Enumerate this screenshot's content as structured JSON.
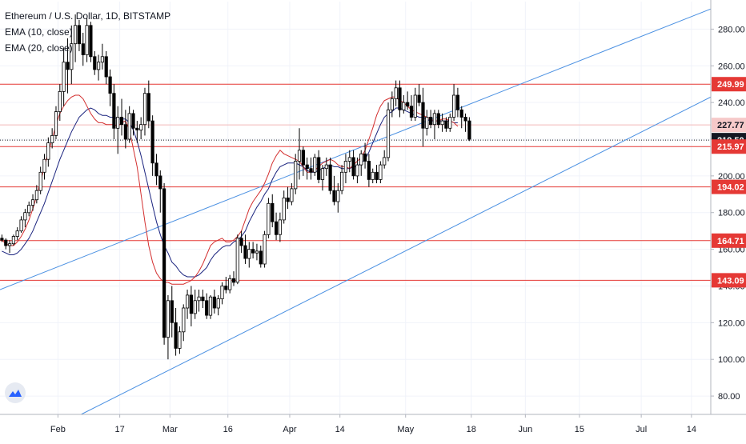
{
  "legend": {
    "symbol": "Ethereum / U.S. Dollar, 1D, BITSTAMP",
    "ema10": "EMA (10, close)",
    "ema20": "EMA (20, close)"
  },
  "colors": {
    "bull": "#ffffff",
    "bear": "#000000",
    "wick": "#000000",
    "ema10": "#d32f2f",
    "ema20": "#1a237e",
    "channel": "#4a90e2",
    "level": "#e53935",
    "last_price_bg": "#131722",
    "prev_close_bg": "#f6c9c9"
  },
  "chart_data": {
    "type": "candlestick",
    "y_axis": {
      "range": [
        70,
        295
      ],
      "ticks": [
        "80.00",
        "100.00",
        "120.00",
        "140.00",
        "160.00",
        "180.00",
        "200.00",
        "220.00",
        "240.00",
        "260.00",
        "280.00"
      ]
    },
    "x_axis": {
      "start_date": "2020-01-17",
      "end_date": "2020-07-19",
      "ticks": [
        {
          "label": "Feb",
          "date": "2020-02-01"
        },
        {
          "label": "17",
          "date": "2020-02-17"
        },
        {
          "label": "Mar",
          "date": "2020-03-01"
        },
        {
          "label": "16",
          "date": "2020-03-16"
        },
        {
          "label": "Apr",
          "date": "2020-04-01"
        },
        {
          "label": "14",
          "date": "2020-04-14"
        },
        {
          "label": "May",
          "date": "2020-05-01"
        },
        {
          "label": "18",
          "date": "2020-05-18"
        },
        {
          "label": "Jun",
          "date": "2020-06-01"
        },
        {
          "label": "15",
          "date": "2020-06-15"
        },
        {
          "label": "Jul",
          "date": "2020-07-01"
        },
        {
          "label": "14",
          "date": "2020-07-14"
        }
      ]
    },
    "price_labels": [
      {
        "text": "249.99",
        "value": 249.99,
        "style": "level"
      },
      {
        "text": "227.77",
        "value": 227.77,
        "style": "prev_close"
      },
      {
        "text": "219.50",
        "value": 219.5,
        "style": "last"
      },
      {
        "text": "215.97",
        "value": 215.97,
        "style": "level"
      },
      {
        "text": "194.02",
        "value": 194.02,
        "style": "level"
      },
      {
        "text": "164.71",
        "value": 164.71,
        "style": "level"
      },
      {
        "text": "143.09",
        "value": 143.09,
        "style": "level"
      }
    ],
    "horizontal_levels": [
      249.99,
      215.97,
      194.02,
      164.71,
      143.09
    ],
    "last_price": 219.5,
    "prev_close": 227.77,
    "channel_lines": [
      {
        "name": "upper",
        "from": {
          "date": "2020-01-17",
          "price": 138
        },
        "to": {
          "date": "2020-07-19",
          "price": 291
        }
      },
      {
        "name": "lower",
        "from": {
          "date": "2020-02-07",
          "price": 70
        },
        "to": {
          "date": "2020-07-19",
          "price": 243
        }
      }
    ],
    "series": [
      {
        "name": "EMA (10, close)",
        "kind": "line",
        "values": [
          165,
          163,
          162,
          162,
          164,
          167,
          171,
          176,
          182,
          189,
          197,
          205,
          213,
          220,
          228,
          234,
          238,
          241,
          243,
          244,
          244,
          242,
          238,
          234,
          231,
          229,
          229,
          228,
          228,
          228,
          227,
          229,
          230,
          225,
          215,
          205,
          190,
          175,
          162,
          153,
          147,
          144,
          142,
          142,
          141,
          141,
          141,
          141,
          142,
          143,
          145,
          148,
          152,
          157,
          162,
          164,
          165,
          166,
          164,
          164,
          165,
          167,
          170,
          176,
          182,
          186,
          189,
          192,
          196,
          201,
          207,
          211,
          214,
          212,
          211,
          210,
          209,
          208,
          205,
          202,
          202,
          203,
          205,
          207,
          208,
          209,
          208,
          206,
          205,
          205,
          204,
          206,
          208,
          210,
          214,
          220,
          226,
          233,
          238,
          241,
          242,
          243,
          243,
          241,
          240,
          238,
          236,
          235,
          234,
          233,
          232,
          231,
          230,
          230,
          231,
          231,
          230,
          229,
          227
        ]
      },
      {
        "name": "EMA (20, close)",
        "kind": "line",
        "values": [
          159,
          158,
          157,
          157,
          158,
          160,
          163,
          166,
          170,
          175,
          180,
          185,
          191,
          197,
          203,
          209,
          214,
          219,
          224,
          228,
          232,
          234,
          236,
          237,
          236,
          234,
          233,
          233,
          232,
          232,
          231,
          231,
          231,
          229,
          225,
          219,
          211,
          202,
          193,
          184,
          175,
          168,
          162,
          158,
          153,
          151,
          148,
          146,
          145,
          145,
          145,
          146,
          148,
          150,
          154,
          157,
          159,
          161,
          162,
          162,
          164,
          165,
          167,
          170,
          175,
          179,
          183,
          186,
          190,
          193,
          198,
          202,
          205,
          206,
          207,
          207,
          207,
          206,
          205,
          203,
          202,
          202,
          203,
          204,
          205,
          206,
          205,
          205,
          204,
          204,
          204,
          205,
          205,
          207,
          209,
          213,
          218,
          223,
          228,
          232,
          234,
          235,
          237,
          237,
          236,
          235,
          234,
          233,
          232,
          232,
          231,
          230,
          230,
          230,
          230,
          230,
          230,
          229,
          229
        ]
      },
      {
        "name": "price",
        "kind": "candles",
        "ohlc": [
          [
            166,
            168,
            164,
            165
          ],
          [
            165,
            166,
            160,
            162
          ],
          [
            162,
            165,
            158,
            163
          ],
          [
            163,
            168,
            162,
            167
          ],
          [
            167,
            172,
            165,
            170
          ],
          [
            170,
            178,
            169,
            176
          ],
          [
            176,
            182,
            172,
            180
          ],
          [
            180,
            186,
            178,
            184
          ],
          [
            184,
            190,
            181,
            187
          ],
          [
            187,
            195,
            185,
            192
          ],
          [
            192,
            205,
            190,
            202
          ],
          [
            202,
            212,
            198,
            209
          ],
          [
            209,
            221,
            205,
            218
          ],
          [
            218,
            226,
            215,
            222
          ],
          [
            222,
            238,
            220,
            235
          ],
          [
            235,
            250,
            230,
            246
          ],
          [
            246,
            270,
            238,
            262
          ],
          [
            262,
            275,
            245,
            258
          ],
          [
            258,
            282,
            250,
            272
          ],
          [
            272,
            288,
            262,
            282
          ],
          [
            282,
            285,
            268,
            272
          ],
          [
            272,
            278,
            260,
            266
          ],
          [
            266,
            286,
            262,
            282
          ],
          [
            282,
            284,
            262,
            265
          ],
          [
            265,
            268,
            255,
            258
          ],
          [
            258,
            266,
            252,
            262
          ],
          [
            262,
            272,
            258,
            265
          ],
          [
            265,
            268,
            250,
            254
          ],
          [
            254,
            258,
            238,
            245
          ],
          [
            245,
            250,
            220,
            226
          ],
          [
            226,
            238,
            212,
            232
          ],
          [
            232,
            242,
            222,
            228
          ],
          [
            228,
            236,
            215,
            220
          ],
          [
            220,
            238,
            218,
            234
          ],
          [
            234,
            236,
            222,
            226
          ],
          [
            226,
            230,
            218,
            225
          ],
          [
            225,
            232,
            220,
            228
          ],
          [
            228,
            248,
            222,
            245
          ],
          [
            245,
            252,
            226,
            230
          ],
          [
            230,
            233,
            200,
            207
          ],
          [
            207,
            212,
            195,
            200
          ],
          [
            200,
            203,
            180,
            193
          ],
          [
            193,
            196,
            108,
            112
          ],
          [
            112,
            135,
            100,
            132
          ],
          [
            132,
            140,
            112,
            120
          ],
          [
            120,
            128,
            102,
            106
          ],
          [
            106,
            118,
            103,
            115
          ],
          [
            115,
            130,
            110,
            128
          ],
          [
            128,
            138,
            122,
            135
          ],
          [
            135,
            140,
            118,
            125
          ],
          [
            125,
            138,
            122,
            132
          ],
          [
            132,
            138,
            126,
            134
          ],
          [
            134,
            138,
            128,
            132
          ],
          [
            132,
            136,
            122,
            124
          ],
          [
            124,
            135,
            122,
            134
          ],
          [
            134,
            138,
            125,
            128
          ],
          [
            128,
            135,
            124,
            133
          ],
          [
            133,
            142,
            130,
            140
          ],
          [
            140,
            145,
            136,
            138
          ],
          [
            138,
            146,
            136,
            144
          ],
          [
            144,
            148,
            140,
            142
          ],
          [
            142,
            168,
            141,
            166
          ],
          [
            166,
            170,
            158,
            162
          ],
          [
            162,
            168,
            152,
            155
          ],
          [
            155,
            164,
            150,
            160
          ],
          [
            160,
            164,
            155,
            158
          ],
          [
            158,
            163,
            154,
            159
          ],
          [
            159,
            162,
            150,
            152
          ],
          [
            152,
            170,
            150,
            168
          ],
          [
            168,
            188,
            166,
            185
          ],
          [
            185,
            190,
            172,
            175
          ],
          [
            175,
            180,
            165,
            168
          ],
          [
            168,
            180,
            164,
            176
          ],
          [
            176,
            192,
            174,
            188
          ],
          [
            188,
            194,
            182,
            186
          ],
          [
            186,
            196,
            184,
            193
          ],
          [
            193,
            212,
            190,
            208
          ],
          [
            208,
            226,
            198,
            214
          ],
          [
            214,
            216,
            200,
            206
          ],
          [
            206,
            210,
            198,
            204
          ],
          [
            204,
            210,
            198,
            202
          ],
          [
            202,
            212,
            200,
            210
          ],
          [
            210,
            214,
            196,
            198
          ],
          [
            198,
            206,
            192,
            204
          ],
          [
            204,
            210,
            200,
            206
          ],
          [
            206,
            210,
            190,
            192
          ],
          [
            192,
            200,
            184,
            186
          ],
          [
            186,
            196,
            180,
            192
          ],
          [
            192,
            206,
            190,
            202
          ],
          [
            202,
            212,
            196,
            208
          ],
          [
            208,
            214,
            202,
            210
          ],
          [
            210,
            214,
            198,
            200
          ],
          [
            200,
            210,
            196,
            206
          ],
          [
            206,
            214,
            200,
            212
          ],
          [
            212,
            218,
            204,
            208
          ],
          [
            208,
            212,
            194,
            198
          ],
          [
            198,
            204,
            196,
            202
          ],
          [
            202,
            206,
            196,
            198
          ],
          [
            198,
            208,
            196,
            206
          ],
          [
            206,
            214,
            204,
            210
          ],
          [
            210,
            240,
            208,
            236
          ],
          [
            236,
            246,
            232,
            242
          ],
          [
            242,
            252,
            238,
            248
          ],
          [
            248,
            252,
            232,
            236
          ],
          [
            236,
            244,
            234,
            240
          ],
          [
            240,
            246,
            236,
            238
          ],
          [
            238,
            244,
            230,
            232
          ],
          [
            232,
            248,
            230,
            244
          ],
          [
            244,
            250,
            238,
            240
          ],
          [
            240,
            248,
            216,
            226
          ],
          [
            226,
            236,
            222,
            232
          ],
          [
            232,
            236,
            226,
            228
          ],
          [
            228,
            236,
            220,
            234
          ],
          [
            234,
            236,
            226,
            228
          ],
          [
            228,
            234,
            224,
            230
          ],
          [
            230,
            232,
            224,
            226
          ],
          [
            226,
            234,
            224,
            232
          ],
          [
            232,
            250,
            230,
            244
          ],
          [
            244,
            248,
            232,
            236
          ],
          [
            236,
            238,
            226,
            232
          ],
          [
            232,
            234,
            224,
            230
          ],
          [
            230,
            232,
            219,
            220
          ]
        ]
      }
    ]
  }
}
